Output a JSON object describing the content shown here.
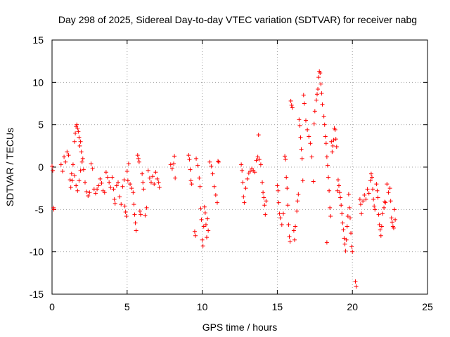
{
  "chart_data": {
    "type": "scatter",
    "title": "Day 298 of 2025, Sidereal Day-to-day VTEC variation (SDTVAR) for receiver nabg",
    "xlabel": "GPS time / hours",
    "ylabel": "SDTVAR / TECUs",
    "xlim": [
      0,
      25
    ],
    "ylim": [
      -15,
      15
    ],
    "xticks": [
      0,
      5,
      10,
      15,
      20,
      25
    ],
    "yticks": [
      -15,
      -10,
      -5,
      0,
      5,
      10,
      15
    ],
    "grid": true,
    "marker": "+",
    "color": "#ff0000",
    "series": [
      {
        "name": "SDTVAR",
        "points": [
          [
            0.0,
            0.1
          ],
          [
            0.05,
            -0.4
          ],
          [
            0.1,
            -4.8
          ],
          [
            0.12,
            -5.0
          ],
          [
            0.6,
            0.3
          ],
          [
            0.7,
            -0.5
          ],
          [
            0.8,
            1.2
          ],
          [
            0.9,
            0.6
          ],
          [
            1.0,
            1.8
          ],
          [
            1.1,
            1.4
          ],
          [
            1.2,
            -1.5
          ],
          [
            1.25,
            -2.4
          ],
          [
            1.3,
            -0.8
          ],
          [
            1.35,
            -1.6
          ],
          [
            1.4,
            0.3
          ],
          [
            1.5,
            3.0
          ],
          [
            1.55,
            4.0
          ],
          [
            1.6,
            4.8
          ],
          [
            1.65,
            5.0
          ],
          [
            1.7,
            4.6
          ],
          [
            1.75,
            4.2
          ],
          [
            1.8,
            3.5
          ],
          [
            1.85,
            2.5
          ],
          [
            1.9,
            3.0
          ],
          [
            1.95,
            1.8
          ],
          [
            2.0,
            0.6
          ],
          [
            2.05,
            1.0
          ],
          [
            1.5,
            -1.0
          ],
          [
            1.6,
            -2.2
          ],
          [
            1.7,
            -2.8
          ],
          [
            1.8,
            -1.6
          ],
          [
            1.9,
            -0.4
          ],
          [
            2.1,
            -0.3
          ],
          [
            2.2,
            -1.8
          ],
          [
            2.3,
            -2.9
          ],
          [
            2.4,
            -3.4
          ],
          [
            2.5,
            -3.0
          ],
          [
            2.6,
            0.4
          ],
          [
            2.7,
            -0.2
          ],
          [
            2.8,
            -2.6
          ],
          [
            2.9,
            -3.1
          ],
          [
            3.0,
            -2.6
          ],
          [
            3.1,
            -2.2
          ],
          [
            3.2,
            -1.4
          ],
          [
            3.3,
            -1.9
          ],
          [
            3.4,
            -2.8
          ],
          [
            3.5,
            -3.0
          ],
          [
            3.6,
            -0.6
          ],
          [
            3.7,
            -1.2
          ],
          [
            3.8,
            -1.8
          ],
          [
            3.9,
            -2.4
          ],
          [
            4.0,
            -1.2
          ],
          [
            4.1,
            -2.6
          ],
          [
            4.15,
            -3.8
          ],
          [
            4.2,
            -4.3
          ],
          [
            4.3,
            -2.2
          ],
          [
            4.4,
            -1.8
          ],
          [
            4.5,
            -3.5
          ],
          [
            4.6,
            -4.4
          ],
          [
            4.7,
            -2.3
          ],
          [
            4.8,
            -1.5
          ],
          [
            4.85,
            -4.6
          ],
          [
            4.9,
            -5.3
          ],
          [
            4.95,
            -5.8
          ],
          [
            5.0,
            -0.5
          ],
          [
            5.05,
            -1.6
          ],
          [
            5.1,
            0.4
          ],
          [
            5.2,
            -2.0
          ],
          [
            5.3,
            -2.5
          ],
          [
            5.4,
            -3.0
          ],
          [
            5.45,
            -4.4
          ],
          [
            5.5,
            -5.6
          ],
          [
            5.55,
            -6.6
          ],
          [
            5.6,
            -7.5
          ],
          [
            5.7,
            1.4
          ],
          [
            5.75,
            1.0
          ],
          [
            5.8,
            0.6
          ],
          [
            5.85,
            -5.2
          ],
          [
            5.9,
            -5.6
          ],
          [
            6.0,
            -0.8
          ],
          [
            6.05,
            -1.8
          ],
          [
            6.1,
            -2.6
          ],
          [
            6.2,
            -5.7
          ],
          [
            6.3,
            -4.8
          ],
          [
            6.4,
            -0.4
          ],
          [
            6.5,
            -1.3
          ],
          [
            6.6,
            -1.8
          ],
          [
            6.7,
            -1.1
          ],
          [
            6.8,
            -2.0
          ],
          [
            6.9,
            -0.6
          ],
          [
            7.0,
            -1.4
          ],
          [
            7.1,
            -1.8
          ],
          [
            7.15,
            -2.4
          ],
          [
            7.9,
            0.3
          ],
          [
            8.0,
            -0.2
          ],
          [
            8.1,
            0.4
          ],
          [
            8.15,
            1.3
          ],
          [
            8.2,
            -1.3
          ],
          [
            9.1,
            1.4
          ],
          [
            9.15,
            0.9
          ],
          [
            9.2,
            -0.3
          ],
          [
            9.25,
            -1.6
          ],
          [
            9.3,
            -2.0
          ],
          [
            9.5,
            -7.6
          ],
          [
            9.55,
            -8.1
          ],
          [
            9.6,
            1.0
          ],
          [
            9.7,
            0.2
          ],
          [
            9.8,
            -1.3
          ],
          [
            9.85,
            -2.3
          ],
          [
            9.9,
            -4.9
          ],
          [
            9.95,
            -6.2
          ],
          [
            10.0,
            -8.6
          ],
          [
            10.05,
            -9.3
          ],
          [
            10.1,
            -7.0
          ],
          [
            10.15,
            -4.7
          ],
          [
            10.2,
            -5.4
          ],
          [
            10.25,
            -6.8
          ],
          [
            10.3,
            -8.3
          ],
          [
            10.35,
            -6.1
          ],
          [
            10.4,
            -7.5
          ],
          [
            10.5,
            0.6
          ],
          [
            10.6,
            0.1
          ],
          [
            10.7,
            -0.8
          ],
          [
            10.8,
            -2.3
          ],
          [
            10.9,
            -3.3
          ],
          [
            11.0,
            -4.2
          ],
          [
            11.05,
            0.7
          ],
          [
            11.1,
            0.6
          ],
          [
            12.6,
            0.3
          ],
          [
            12.65,
            -0.4
          ],
          [
            12.7,
            -1.8
          ],
          [
            12.75,
            -3.5
          ],
          [
            12.8,
            -4.2
          ],
          [
            12.9,
            -2.5
          ],
          [
            13.0,
            -1.4
          ],
          [
            13.1,
            -0.7
          ],
          [
            13.2,
            -0.5
          ],
          [
            13.3,
            -0.2
          ],
          [
            13.4,
            -0.4
          ],
          [
            13.5,
            -0.6
          ],
          [
            13.6,
            0.8
          ],
          [
            13.7,
            1.2
          ],
          [
            13.75,
            3.8
          ],
          [
            13.8,
            0.9
          ],
          [
            13.9,
            0.3
          ],
          [
            14.0,
            -1.8
          ],
          [
            14.05,
            -3.0
          ],
          [
            14.1,
            -3.6
          ],
          [
            14.15,
            -4.5
          ],
          [
            14.2,
            -5.6
          ],
          [
            14.25,
            -4.0
          ],
          [
            15.0,
            -2.2
          ],
          [
            15.05,
            -2.8
          ],
          [
            15.1,
            -4.2
          ],
          [
            15.15,
            -5.5
          ],
          [
            15.2,
            -6.0
          ],
          [
            15.3,
            -6.8
          ],
          [
            15.4,
            -5.5
          ],
          [
            15.5,
            1.3
          ],
          [
            15.55,
            0.9
          ],
          [
            15.6,
            -1.2
          ],
          [
            15.65,
            -2.5
          ],
          [
            15.7,
            -4.5
          ],
          [
            15.75,
            -6.8
          ],
          [
            15.8,
            -8.2
          ],
          [
            15.85,
            -8.8
          ],
          [
            15.9,
            7.8
          ],
          [
            15.95,
            7.3
          ],
          [
            16.0,
            7.0
          ],
          [
            16.1,
            -7.5
          ],
          [
            16.15,
            -8.6
          ],
          [
            16.2,
            -7.0
          ],
          [
            16.3,
            -5.2
          ],
          [
            16.35,
            -4.0
          ],
          [
            16.4,
            -3.2
          ],
          [
            16.45,
            5.6
          ],
          [
            16.5,
            4.9
          ],
          [
            16.55,
            3.5
          ],
          [
            16.6,
            2.1
          ],
          [
            16.65,
            1.0
          ],
          [
            16.7,
            -1.6
          ],
          [
            16.75,
            8.5
          ],
          [
            16.8,
            7.5
          ],
          [
            16.9,
            5.5
          ],
          [
            17.0,
            4.4
          ],
          [
            17.1,
            3.6
          ],
          [
            17.2,
            2.8
          ],
          [
            17.3,
            1.2
          ],
          [
            17.4,
            -1.7
          ],
          [
            17.45,
            5.1
          ],
          [
            17.5,
            6.6
          ],
          [
            17.6,
            7.9
          ],
          [
            17.65,
            8.6
          ],
          [
            17.7,
            9.2
          ],
          [
            17.75,
            10.6
          ],
          [
            17.8,
            11.3
          ],
          [
            17.85,
            11.1
          ],
          [
            17.9,
            9.8
          ],
          [
            17.95,
            8.7
          ],
          [
            18.0,
            7.4
          ],
          [
            18.1,
            6.0
          ],
          [
            18.15,
            5.0
          ],
          [
            18.2,
            3.6
          ],
          [
            18.25,
            2.8
          ],
          [
            18.3,
            1.2
          ],
          [
            18.35,
            0.2
          ],
          [
            18.4,
            -1.2
          ],
          [
            18.45,
            -2.8
          ],
          [
            18.5,
            -4.8
          ],
          [
            18.55,
            -5.8
          ],
          [
            18.6,
            3.0
          ],
          [
            18.65,
            1.8
          ],
          [
            18.7,
            2.5
          ],
          [
            18.75,
            3.2
          ],
          [
            18.8,
            4.6
          ],
          [
            18.85,
            4.4
          ],
          [
            18.9,
            3.3
          ],
          [
            18.95,
            2.4
          ],
          [
            19.0,
            -2.8
          ],
          [
            19.05,
            -1.5
          ],
          [
            19.1,
            -2.2
          ],
          [
            19.15,
            -3.0
          ],
          [
            19.2,
            -3.6
          ],
          [
            19.25,
            -4.5
          ],
          [
            19.3,
            -5.5
          ],
          [
            19.35,
            -6.6
          ],
          [
            19.4,
            -7.4
          ],
          [
            19.45,
            -8.4
          ],
          [
            19.5,
            -9.1
          ],
          [
            19.55,
            -9.9
          ],
          [
            19.6,
            -8.6
          ],
          [
            19.65,
            -7.0
          ],
          [
            19.7,
            -5.8
          ],
          [
            19.75,
            -3.2
          ],
          [
            19.8,
            -4.8
          ],
          [
            19.85,
            -6.0
          ],
          [
            19.9,
            -7.8
          ],
          [
            19.95,
            -9.4
          ],
          [
            20.0,
            -10.0
          ],
          [
            18.3,
            -8.9
          ],
          [
            20.2,
            -13.5
          ],
          [
            20.25,
            -14.1
          ],
          [
            20.5,
            -3.8
          ],
          [
            20.55,
            -4.4
          ],
          [
            20.6,
            -5.5
          ],
          [
            20.7,
            -4.0
          ],
          [
            20.8,
            -3.3
          ],
          [
            20.9,
            -3.8
          ],
          [
            21.0,
            -2.6
          ],
          [
            21.1,
            -3.1
          ],
          [
            21.2,
            -1.6
          ],
          [
            21.25,
            -0.8
          ],
          [
            21.3,
            -1.2
          ],
          [
            21.35,
            -2.6
          ],
          [
            21.4,
            -3.8
          ],
          [
            21.45,
            -4.6
          ],
          [
            21.5,
            -5.0
          ],
          [
            21.6,
            -2.0
          ],
          [
            21.65,
            -2.8
          ],
          [
            21.7,
            -3.6
          ],
          [
            21.75,
            -5.6
          ],
          [
            21.8,
            -6.8
          ],
          [
            21.85,
            -7.4
          ],
          [
            21.9,
            -8.1
          ],
          [
            21.95,
            -7.0
          ],
          [
            22.0,
            -5.5
          ],
          [
            22.1,
            -4.8
          ],
          [
            22.15,
            -4.1
          ],
          [
            22.2,
            -4.2
          ],
          [
            22.3,
            -2.0
          ],
          [
            22.4,
            -3.0
          ],
          [
            22.5,
            -2.5
          ],
          [
            22.55,
            -4.0
          ],
          [
            22.6,
            -6.0
          ],
          [
            22.65,
            -6.5
          ],
          [
            22.7,
            -7.0
          ],
          [
            22.75,
            -7.2
          ],
          [
            22.8,
            -5.0
          ],
          [
            22.85,
            -6.2
          ]
        ]
      }
    ]
  }
}
